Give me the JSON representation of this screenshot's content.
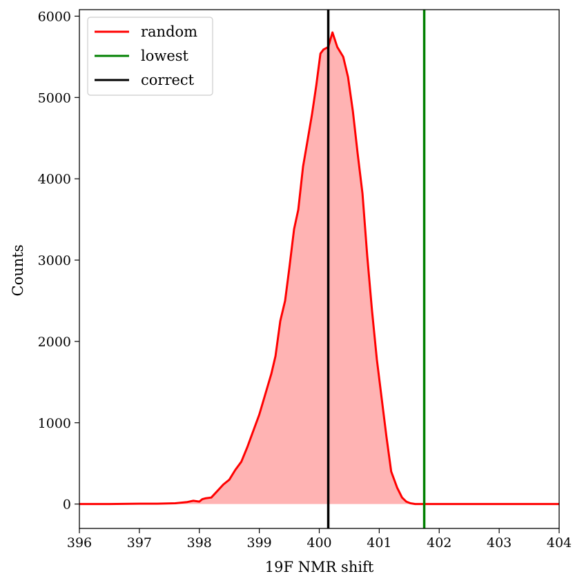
{
  "chart_data": {
    "type": "area",
    "xlabel": "19F NMR shift",
    "ylabel": "Counts",
    "xlim": [
      396,
      404
    ],
    "ylim": [
      -300,
      6080
    ],
    "x_ticks": [
      "396",
      "397",
      "398",
      "399",
      "400",
      "401",
      "402",
      "403",
      "404"
    ],
    "y_ticks": [
      "0",
      "1000",
      "2000",
      "3000",
      "4000",
      "5000",
      "6000"
    ],
    "grid": false,
    "legend": {
      "placement": "top-left",
      "entries": [
        {
          "label": "random",
          "color": "#ff0000"
        },
        {
          "label": "lowest",
          "color": "#008000"
        },
        {
          "label": "correct",
          "color": "#000000"
        }
      ]
    },
    "series": [
      {
        "name": "random",
        "color": "#ff0000",
        "fill_color": "#ffb3b3",
        "x": [
          396.0,
          396.5,
          397.0,
          397.3,
          397.6,
          397.8,
          397.9,
          398.0,
          398.05,
          398.1,
          398.2,
          398.3,
          398.4,
          398.5,
          398.6,
          398.7,
          398.8,
          398.9,
          399.0,
          399.1,
          399.2,
          399.27,
          399.35,
          399.43,
          399.5,
          399.58,
          399.65,
          399.73,
          399.8,
          399.88,
          399.95,
          400.02,
          400.07,
          400.15,
          400.22,
          400.3,
          400.4,
          400.48,
          400.56,
          400.64,
          400.72,
          400.8,
          400.88,
          400.96,
          401.04,
          401.12,
          401.2,
          401.3,
          401.38,
          401.45,
          401.52,
          401.6,
          401.7,
          402.0,
          403.0,
          404.0
        ],
        "y": [
          0,
          0,
          5,
          5,
          10,
          25,
          40,
          30,
          60,
          70,
          80,
          160,
          240,
          300,
          420,
          520,
          700,
          900,
          1100,
          1350,
          1600,
          1820,
          2250,
          2500,
          2900,
          3380,
          3620,
          4150,
          4450,
          4800,
          5150,
          5540,
          5590,
          5620,
          5800,
          5620,
          5500,
          5250,
          4830,
          4310,
          3820,
          3050,
          2380,
          1780,
          1300,
          830,
          400,
          200,
          80,
          30,
          10,
          0,
          0,
          0,
          0,
          0
        ]
      }
    ],
    "vertical_lines": [
      {
        "name": "lowest",
        "x": 401.75,
        "color": "#008000"
      },
      {
        "name": "correct",
        "x": 400.15,
        "color": "#000000"
      }
    ]
  }
}
